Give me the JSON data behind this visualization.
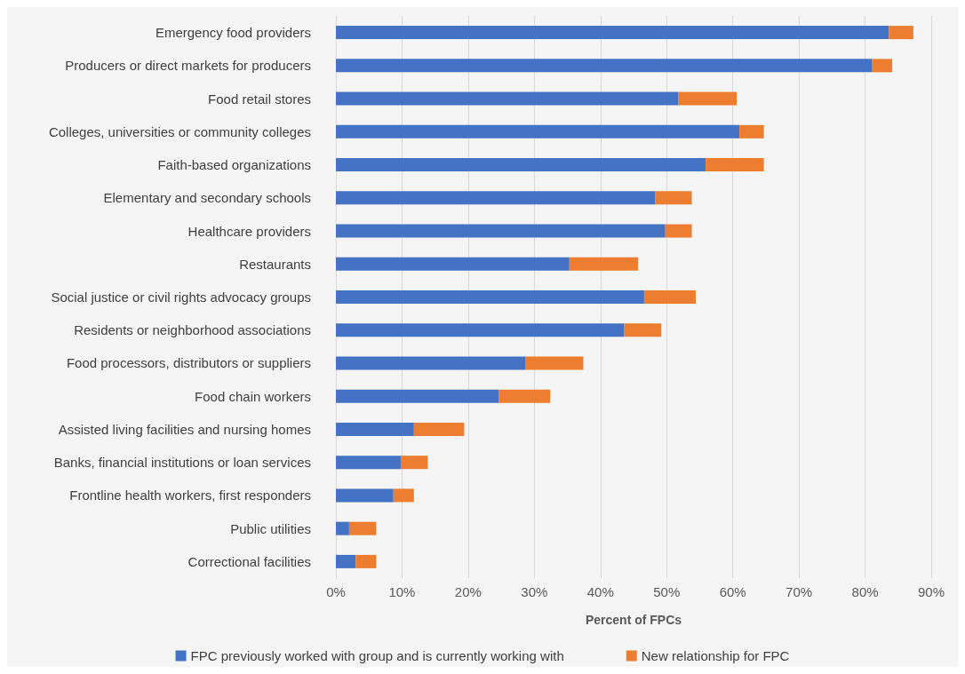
{
  "chart_data": {
    "type": "bar",
    "orientation": "horizontal",
    "stacked": true,
    "xlabel": "Percent of FPCs",
    "categories": [
      "Emergency food providers",
      "Producers or direct markets for producers",
      "Food retail stores",
      "Colleges, universities or community colleges",
      "Faith-based organizations",
      "Elementary and secondary schools",
      "Healthcare providers",
      "Restaurants",
      "Social justice or civil rights advocacy groups",
      "Residents or neighborhood associations",
      "Food processors, distributors or suppliers",
      "Food chain workers",
      "Assisted living facilities and nursing homes",
      "Banks, financial institutions or loan services",
      "Frontline health workers, first responders",
      "Public utilities",
      "Correctional facilities"
    ],
    "series": [
      {
        "name": "FPC previously worked with group and is currently working with",
        "color": "#4472c4",
        "values": [
          83.6,
          81.0,
          51.8,
          61.0,
          55.9,
          48.3,
          49.8,
          35.3,
          46.6,
          43.6,
          28.7,
          24.6,
          11.8,
          9.8,
          8.7,
          2.0,
          3.0
        ]
      },
      {
        "name": "New relationship for FPC",
        "color": "#ed7d31",
        "values": [
          3.7,
          3.1,
          8.8,
          3.7,
          8.8,
          5.5,
          4.0,
          10.4,
          7.8,
          5.6,
          8.7,
          7.8,
          7.6,
          4.1,
          3.1,
          4.1,
          3.1
        ]
      }
    ],
    "xlim": [
      0,
      90
    ],
    "xticks": [
      {
        "value": 0,
        "label": "0%"
      },
      {
        "value": 10,
        "label": "10%"
      },
      {
        "value": 20,
        "label": "20%"
      },
      {
        "value": 30,
        "label": "30%"
      },
      {
        "value": 40,
        "label": "40%"
      },
      {
        "value": 50,
        "label": "50%"
      },
      {
        "value": 60,
        "label": "60%"
      },
      {
        "value": 70,
        "label": "70%"
      },
      {
        "value": 80,
        "label": "80%"
      },
      {
        "value": 90,
        "label": "90%"
      }
    ],
    "grid": "x",
    "legend": "bottom"
  }
}
